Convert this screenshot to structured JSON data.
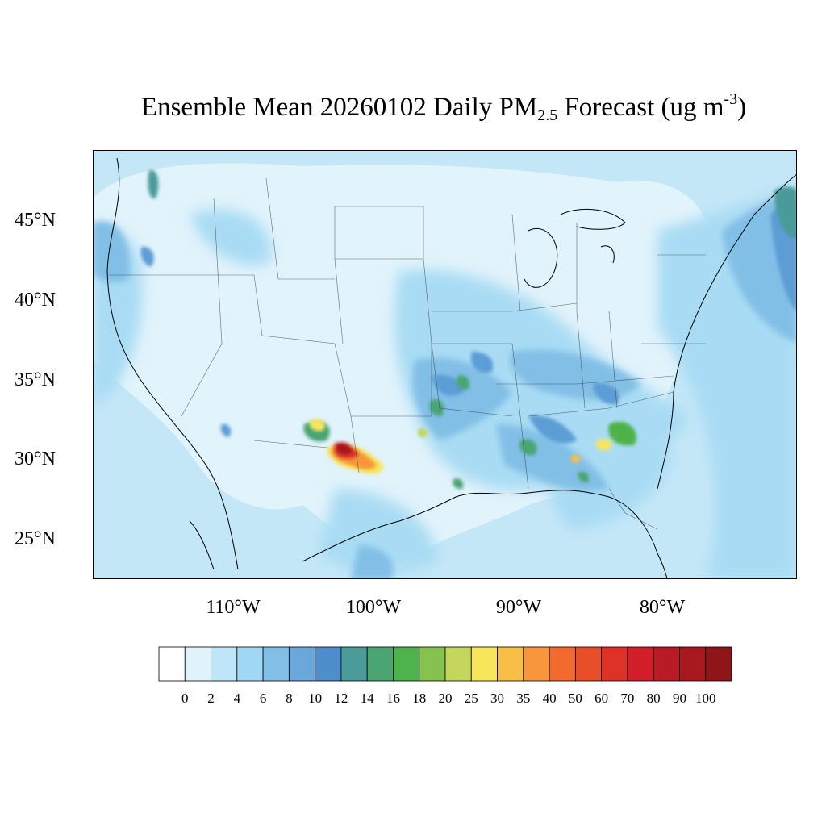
{
  "title": {
    "main": "Ensemble Mean 20260102 Daily PM",
    "sub": "2.5",
    "mid": " Forecast (ug m",
    "sup": "-3",
    "end": ")"
  },
  "lat_labels": [
    "45°N",
    "40°N",
    "35°N",
    "30°N",
    "25°N"
  ],
  "lon_labels": [
    "110°W",
    "100°W",
    "90°W",
    "80°W"
  ],
  "colorbar": {
    "labels": [
      "0",
      "2",
      "4",
      "6",
      "8",
      "10",
      "12",
      "14",
      "16",
      "18",
      "20",
      "25",
      "30",
      "35",
      "40",
      "50",
      "60",
      "70",
      "80",
      "90",
      "100"
    ],
    "colors": [
      "#ffffff",
      "#e0f3fb",
      "#bfe6f7",
      "#a0d8f3",
      "#82bfe6",
      "#6aa7db",
      "#4d8ecb",
      "#4a9b9a",
      "#4aa572",
      "#4db34a",
      "#86c24f",
      "#c4d65b",
      "#f7e65b",
      "#f8bf46",
      "#f7963b",
      "#f26a2e",
      "#e94e2a",
      "#de3227",
      "#d21f2a",
      "#b81b25",
      "#a8191f",
      "#8f1519"
    ]
  },
  "colors": {
    "ocean": "#c4e7f7",
    "land_base": "#e3f4fc",
    "moderate": "#a6dcf4",
    "elevated": "#7fbbe4",
    "high": "#4f93cd"
  }
}
